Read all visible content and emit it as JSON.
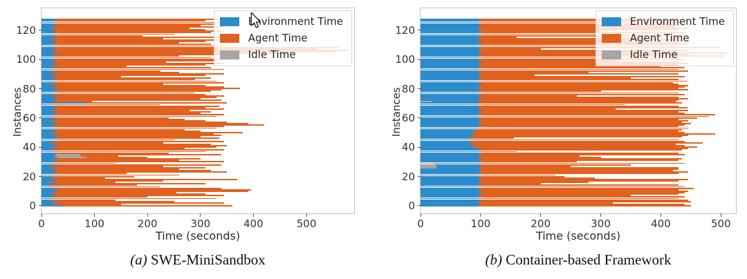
{
  "colors": {
    "env": "#2c8bcb",
    "agent": "#e1621f",
    "idle": "#a6a6a6"
  },
  "legend": {
    "items": [
      {
        "key": "env",
        "label": "Environment Time"
      },
      {
        "key": "agent",
        "label": "Agent Time"
      },
      {
        "key": "idle",
        "label": "Idle Time"
      }
    ]
  },
  "chart_data": [
    {
      "type": "bar",
      "orientation": "horizontal",
      "caption_prefix": "(a)",
      "caption": "SWE-MiniSandbox",
      "xlabel": "Time (seconds)",
      "ylabel": "Instances",
      "xmax": 590,
      "xticks": [
        0,
        100,
        200,
        300,
        400,
        500
      ],
      "yticks": [
        0,
        20,
        40,
        60,
        80,
        100,
        120
      ],
      "n_instances": 128,
      "series_order": [
        "env",
        "idle",
        "agent"
      ],
      "idle_first_instances": [],
      "bars": [
        [
          40,
          0,
          320
        ],
        [
          18,
          0,
          132
        ],
        [
          30,
          0,
          315
        ],
        [
          22,
          0,
          228
        ],
        [
          15,
          0,
          125
        ],
        [
          35,
          0,
          295
        ],
        [
          20,
          0,
          180
        ],
        [
          28,
          0,
          317
        ],
        [
          24,
          0,
          286
        ],
        [
          16,
          0,
          239
        ],
        [
          32,
          0,
          358
        ],
        [
          25,
          0,
          370
        ],
        [
          20,
          0,
          320
        ],
        [
          38,
          0,
          187
        ],
        [
          15,
          0,
          165
        ],
        [
          28,
          0,
          282
        ],
        [
          12,
          0,
          128
        ],
        [
          24,
          0,
          206
        ],
        [
          30,
          0,
          340
        ],
        [
          16,
          0,
          104
        ],
        [
          22,
          0,
          153
        ],
        [
          35,
          0,
          225
        ],
        [
          18,
          0,
          142
        ],
        [
          26,
          0,
          324
        ],
        [
          30,
          0,
          290
        ],
        [
          20,
          0,
          240
        ],
        [
          24,
          0,
          286
        ],
        [
          15,
          0,
          215
        ],
        [
          32,
          0,
          308
        ],
        [
          18,
          0,
          122
        ],
        [
          28,
          0,
          317
        ],
        [
          22,
          0,
          238
        ],
        [
          25,
          0,
          275
        ],
        [
          30,
          55,
          115
        ],
        [
          25,
          50,
          70
        ],
        [
          28,
          45,
          267
        ],
        [
          20,
          0,
          220
        ],
        [
          26,
          0,
          284
        ],
        [
          32,
          0,
          313
        ],
        [
          18,
          0,
          252
        ],
        [
          24,
          0,
          306
        ],
        [
          30,
          0,
          320
        ],
        [
          22,
          0,
          298
        ],
        [
          16,
          0,
          214
        ],
        [
          28,
          0,
          317
        ],
        [
          20,
          0,
          230
        ],
        [
          34,
          0,
          301
        ],
        [
          25,
          0,
          275
        ],
        [
          30,
          0,
          310
        ],
        [
          22,
          0,
          303
        ],
        [
          18,
          0,
          362
        ],
        [
          28,
          0,
          272
        ],
        [
          24,
          0,
          246
        ],
        [
          32,
          0,
          298
        ],
        [
          20,
          0,
          325
        ],
        [
          26,
          0,
          394
        ],
        [
          30,
          0,
          360
        ],
        [
          22,
          0,
          328
        ],
        [
          16,
          0,
          294
        ],
        [
          28,
          0,
          242
        ],
        [
          24,
          0,
          216
        ],
        [
          32,
          0,
          298
        ],
        [
          20,
          0,
          325
        ],
        [
          26,
          0,
          274
        ],
        [
          30,
          0,
          290
        ],
        [
          18,
          0,
          262
        ],
        [
          28,
          0,
          317
        ],
        [
          22,
          0,
          288
        ],
        [
          24,
          0,
          311
        ],
        [
          16,
          0,
          209
        ],
        [
          85,
          0,
          265
        ],
        [
          20,
          0,
          75
        ],
        [
          28,
          0,
          312
        ],
        [
          24,
          0,
          276
        ],
        [
          30,
          0,
          300
        ],
        [
          22,
          0,
          323
        ],
        [
          26,
          0,
          284
        ],
        [
          18,
          0,
          272
        ],
        [
          32,
          0,
          288
        ],
        [
          24,
          0,
          316
        ],
        [
          28,
          0,
          347
        ],
        [
          20,
          0,
          325
        ],
        [
          30,
          0,
          280
        ],
        [
          16,
          0,
          214
        ],
        [
          26,
          0,
          319
        ],
        [
          22,
          0,
          308
        ],
        [
          28,
          0,
          262
        ],
        [
          24,
          0,
          296
        ],
        [
          14,
          0,
          136
        ],
        [
          30,
          0,
          280
        ],
        [
          20,
          0,
          325
        ],
        [
          26,
          0,
          234
        ],
        [
          18,
          0,
          207
        ],
        [
          28,
          0,
          317
        ],
        [
          24,
          0,
          296
        ],
        [
          16,
          0,
          144
        ],
        [
          30,
          0,
          280
        ],
        [
          22,
          0,
          323
        ],
        [
          26,
          0,
          209
        ],
        [
          20,
          0,
          310
        ],
        [
          28,
          0,
          327
        ],
        [
          24,
          0,
          296
        ],
        [
          18,
          0,
          242
        ],
        [
          30,
          0,
          315
        ],
        [
          22,
          0,
          458
        ],
        [
          26,
          0,
          529
        ],
        [
          18,
          0,
          562
        ],
        [
          28,
          0,
          492
        ],
        [
          24,
          0,
          536
        ],
        [
          30,
          0,
          320
        ],
        [
          20,
          0,
          300
        ],
        [
          26,
          0,
          234
        ],
        [
          22,
          0,
          288
        ],
        [
          28,
          0,
          317
        ],
        [
          16,
          0,
          214
        ],
        [
          24,
          0,
          316
        ],
        [
          30,
          0,
          160
        ],
        [
          20,
          0,
          230
        ],
        [
          26,
          0,
          294
        ],
        [
          22,
          0,
          323
        ],
        [
          28,
          0,
          282
        ],
        [
          18,
          0,
          262
        ],
        [
          24,
          0,
          316
        ],
        [
          30,
          0,
          270
        ],
        [
          20,
          0,
          310
        ],
        [
          26,
          0,
          319
        ],
        [
          22,
          0,
          288
        ],
        [
          28,
          0,
          312
        ]
      ]
    },
    {
      "type": "bar",
      "orientation": "horizontal",
      "caption_prefix": "(b)",
      "caption": "Container-based Framework",
      "xlabel": "Time (seconds)",
      "ylabel": "Instances",
      "xmax": 525,
      "xticks": [
        0,
        100,
        200,
        300,
        400,
        500
      ],
      "yticks": [
        0,
        20,
        40,
        60,
        80,
        100,
        120
      ],
      "n_instances": 128,
      "series_order": [
        "env",
        "idle",
        "agent"
      ],
      "idle_first_instances": [
        26,
        27,
        28,
        29,
        71
      ],
      "bars": [
        [
          98,
          0,
          352
        ],
        [
          95,
          0,
          345
        ],
        [
          100,
          0,
          220
        ],
        [
          96,
          0,
          354
        ],
        [
          102,
          0,
          343
        ],
        [
          98,
          0,
          332
        ],
        [
          95,
          0,
          345
        ],
        [
          100,
          0,
          250
        ],
        [
          97,
          0,
          333
        ],
        [
          102,
          0,
          338
        ],
        [
          98,
          0,
          347
        ],
        [
          95,
          0,
          335
        ],
        [
          100,
          0,
          355
        ],
        [
          97,
          0,
          343
        ],
        [
          102,
          0,
          328
        ],
        [
          95,
          0,
          105
        ],
        [
          98,
          0,
          182
        ],
        [
          100,
          0,
          330
        ],
        [
          96,
          0,
          349
        ],
        [
          102,
          0,
          188
        ],
        [
          98,
          0,
          142
        ],
        [
          95,
          0,
          130
        ],
        [
          100,
          0,
          330
        ],
        [
          97,
          0,
          348
        ],
        [
          102,
          0,
          318
        ],
        [
          98,
          0,
          332
        ],
        [
          75,
          25,
          330
        ],
        [
          72,
          28,
          150
        ],
        [
          75,
          25,
          250
        ],
        [
          78,
          22,
          340
        ],
        [
          100,
          0,
          160
        ],
        [
          96,
          0,
          334
        ],
        [
          102,
          0,
          333
        ],
        [
          98,
          0,
          202
        ],
        [
          95,
          0,
          170
        ],
        [
          100,
          0,
          340
        ],
        [
          97,
          0,
          333
        ],
        [
          102,
          0,
          58
        ],
        [
          95,
          0,
          340
        ],
        [
          100,
          0,
          345
        ],
        [
          88,
          0,
          372
        ],
        [
          82,
          0,
          358
        ],
        [
          90,
          0,
          335
        ],
        [
          78,
          0,
          392
        ],
        [
          85,
          0,
          355
        ],
        [
          92,
          0,
          338
        ],
        [
          80,
          0,
          75
        ],
        [
          88,
          0,
          347
        ],
        [
          84,
          0,
          361
        ],
        [
          90,
          0,
          400
        ],
        [
          86,
          0,
          354
        ],
        [
          92,
          0,
          338
        ],
        [
          88,
          0,
          347
        ],
        [
          100,
          0,
          345
        ],
        [
          96,
          0,
          334
        ],
        [
          102,
          0,
          338
        ],
        [
          98,
          0,
          352
        ],
        [
          95,
          0,
          340
        ],
        [
          100,
          0,
          345
        ],
        [
          97,
          0,
          333
        ],
        [
          102,
          0,
          358
        ],
        [
          98,
          0,
          382
        ],
        [
          95,
          0,
          395
        ],
        [
          100,
          0,
          340
        ],
        [
          96,
          0,
          334
        ],
        [
          102,
          0,
          343
        ],
        [
          98,
          0,
          227
        ],
        [
          95,
          0,
          350
        ],
        [
          100,
          0,
          330
        ],
        [
          97,
          0,
          243
        ],
        [
          95,
          0,
          340
        ],
        [
          75,
          20,
          330
        ],
        [
          96,
          0,
          334
        ],
        [
          102,
          0,
          343
        ],
        [
          98,
          0,
          332
        ],
        [
          95,
          0,
          165
        ],
        [
          100,
          0,
          340
        ],
        [
          97,
          0,
          333
        ],
        [
          102,
          0,
          198
        ],
        [
          98,
          0,
          347
        ],
        [
          95,
          0,
          335
        ],
        [
          100,
          0,
          340
        ],
        [
          96,
          0,
          349
        ],
        [
          102,
          0,
          328
        ],
        [
          98,
          0,
          322
        ],
        [
          95,
          0,
          350
        ],
        [
          100,
          0,
          330
        ],
        [
          97,
          0,
          253
        ],
        [
          102,
          0,
          338
        ],
        [
          98,
          0,
          92
        ],
        [
          95,
          0,
          335
        ],
        [
          100,
          0,
          180
        ],
        [
          96,
          0,
          349
        ],
        [
          102,
          0,
          328
        ],
        [
          98,
          0,
          342
        ],
        [
          95,
          0,
          305
        ],
        [
          100,
          0,
          330
        ],
        [
          97,
          0,
          348
        ],
        [
          102,
          0,
          328
        ],
        [
          98,
          0,
          232
        ],
        [
          95,
          0,
          345
        ],
        [
          100,
          0,
          330
        ],
        [
          96,
          0,
          409
        ],
        [
          102,
          0,
          343
        ],
        [
          98,
          0,
          412
        ],
        [
          95,
          0,
          335
        ],
        [
          100,
          0,
          345
        ],
        [
          97,
          0,
          103
        ],
        [
          102,
          0,
          398
        ],
        [
          98,
          0,
          332
        ],
        [
          95,
          0,
          350
        ],
        [
          100,
          0,
          330
        ],
        [
          96,
          0,
          254
        ],
        [
          102,
          0,
          338
        ],
        [
          98,
          0,
          332
        ],
        [
          95,
          0,
          65
        ],
        [
          100,
          0,
          345
        ],
        [
          97,
          0,
          333
        ],
        [
          102,
          0,
          338
        ],
        [
          98,
          0,
          202
        ],
        [
          95,
          0,
          335
        ],
        [
          100,
          0,
          345
        ],
        [
          96,
          0,
          329
        ],
        [
          102,
          0,
          338
        ],
        [
          98,
          0,
          332
        ],
        [
          95,
          0,
          350
        ],
        [
          100,
          0,
          330
        ],
        [
          97,
          0,
          343
        ]
      ]
    }
  ]
}
